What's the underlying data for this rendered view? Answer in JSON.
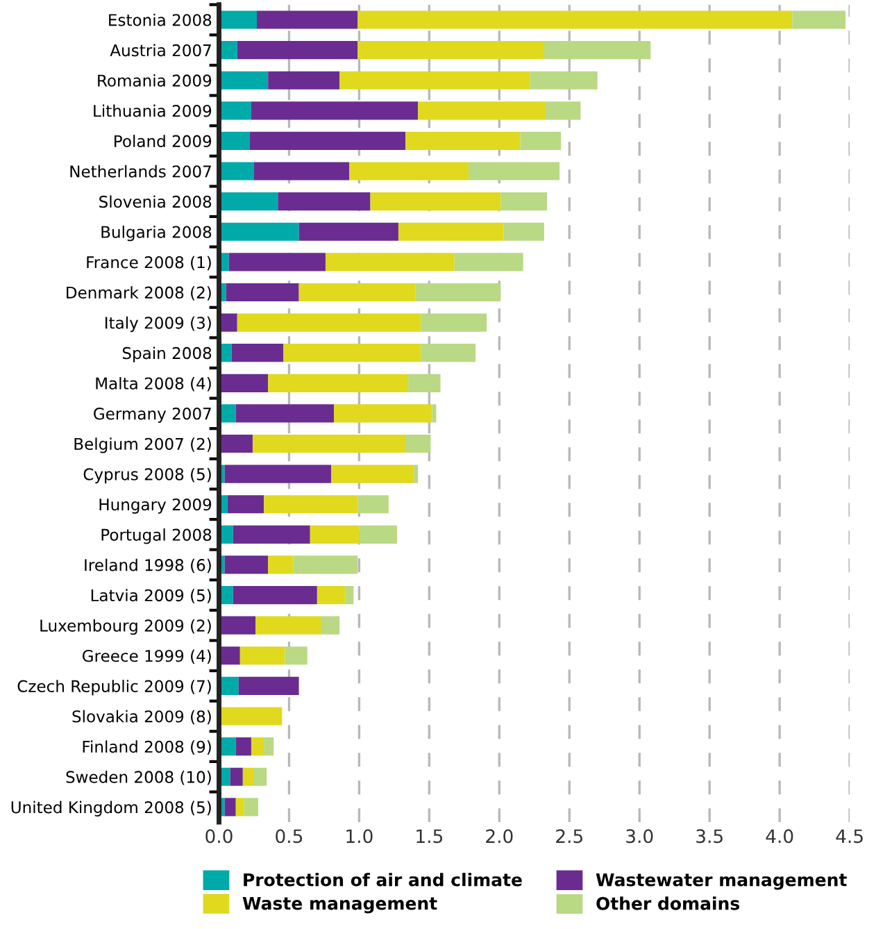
{
  "chart_data": {
    "type": "bar",
    "orientation": "horizontal",
    "stacked": true,
    "categories": [
      "Estonia 2008",
      "Austria 2007",
      "Romania 2009",
      "Lithuania 2009",
      "Poland 2009",
      "Netherlands 2007",
      "Slovenia 2008",
      "Bulgaria 2008",
      "France 2008 (1)",
      "Denmark 2008 (2)",
      "Italy 2009 (3)",
      "Spain 2008",
      "Malta 2008 (4)",
      "Germany 2007",
      "Belgium 2007 (2)",
      "Cyprus 2008 (5)",
      "Hungary 2009",
      "Portugal 2008",
      "Ireland 1998 (6)",
      "Latvia 2009 (5)",
      "Luxembourg 2009 (2)",
      "Greece 1999 (4)",
      "Czech Republic 2009 (7)",
      "Slovakia 2009 (8)",
      "Finland 2008 (9)",
      "Sweden 2008 (10)",
      "United Kingdom 2008 (5)"
    ],
    "series": [
      {
        "name": "Protection of air and climate",
        "color": "#00aaa8",
        "values": [
          0.27,
          0.13,
          0.35,
          0.23,
          0.22,
          0.25,
          0.42,
          0.57,
          0.07,
          0.05,
          0,
          0.09,
          0,
          0.12,
          0,
          0.04,
          0.06,
          0.1,
          0.04,
          0.1,
          0,
          0,
          0.14,
          0,
          0.12,
          0.08,
          0.04
        ]
      },
      {
        "name": "Wastewater management",
        "color": "#6b2c91",
        "values": [
          0.72,
          0.86,
          0.51,
          1.19,
          1.11,
          0.68,
          0.66,
          0.71,
          0.69,
          0.52,
          0.13,
          0.37,
          0.35,
          0.7,
          0.24,
          0.76,
          0.26,
          0.55,
          0.31,
          0.6,
          0.26,
          0.15,
          0.43,
          0,
          0.11,
          0.09,
          0.08
        ]
      },
      {
        "name": "Waste management",
        "color": "#e0d91e",
        "values": [
          3.1,
          1.33,
          1.36,
          0.91,
          0.82,
          0.85,
          0.93,
          0.75,
          0.92,
          0.83,
          1.31,
          0.98,
          1.0,
          0.7,
          1.09,
          0.59,
          0.67,
          0.35,
          0.18,
          0.2,
          0.47,
          0.32,
          0,
          0.45,
          0.09,
          0.08,
          0.06
        ]
      },
      {
        "name": "Other domains",
        "color": "#b9d984",
        "values": [
          0.38,
          0.76,
          0.48,
          0.25,
          0.29,
          0.65,
          0.33,
          0.29,
          0.49,
          0.61,
          0.47,
          0.39,
          0.23,
          0.03,
          0.18,
          0.03,
          0.22,
          0.27,
          0.46,
          0.06,
          0.13,
          0.16,
          0,
          0,
          0.07,
          0.09,
          0.1
        ]
      }
    ],
    "xlim": [
      0,
      4.5
    ],
    "xticks": [
      {
        "value": 0,
        "label": "0.0"
      },
      0.5,
      {
        "value": 1,
        "label": "1.0"
      },
      1.5,
      {
        "value": 2,
        "label": "2.0"
      },
      2.5,
      {
        "value": 3,
        "label": "3.0"
      },
      3.5,
      {
        "value": 4,
        "label": "4.0"
      },
      4.5
    ],
    "grid": "x",
    "legend": "bottom"
  }
}
